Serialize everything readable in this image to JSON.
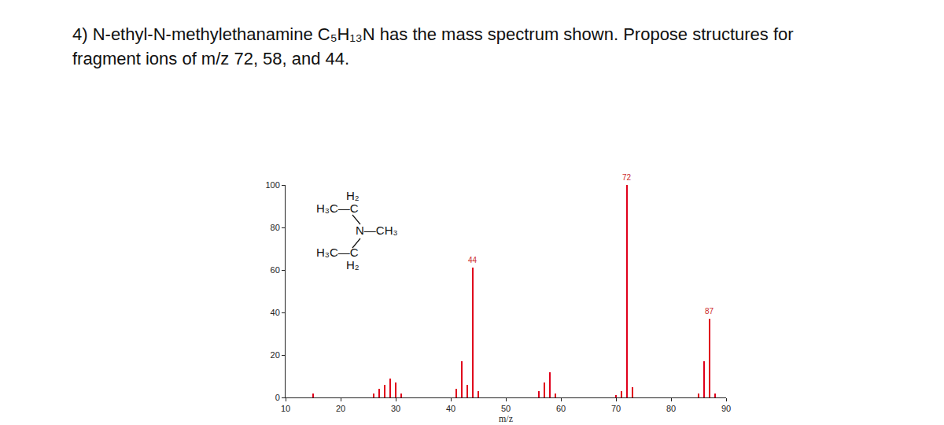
{
  "header": {
    "lines": [
      "4) N-ethyl-N-methylethanamine C₅H₁₃N has the mass spectrum shown. Propose structures for",
      "fragment ions of m/z 72, 58, and 44."
    ]
  },
  "structure": {
    "lines": [
      "H₂",
      "H₃C—C",
      "N—CH₃",
      "H₃C—C",
      "H₂"
    ]
  },
  "chart_data": {
    "type": "bar",
    "x": [
      15,
      26,
      27,
      28,
      29,
      30,
      31,
      41,
      42,
      43,
      44,
      45,
      56,
      57,
      58,
      59,
      70,
      71,
      72,
      73,
      85,
      86,
      87,
      88
    ],
    "values": [
      2,
      2,
      4,
      6,
      9,
      7,
      2,
      4,
      17,
      6,
      61,
      3,
      3,
      7,
      12,
      2,
      1,
      3,
      100,
      5,
      2,
      17,
      37,
      2
    ],
    "color": "#e0001b",
    "xlim": [
      10,
      90
    ],
    "xticks": [
      10,
      20,
      30,
      40,
      50,
      60,
      70,
      80,
      90
    ],
    "ylim": [
      0,
      100
    ],
    "yticks": [
      0,
      20,
      40,
      60,
      80,
      100
    ],
    "x_label": "m/z",
    "annotations": [
      {
        "x": 72,
        "y": 100,
        "text": "72"
      },
      {
        "x": 44,
        "y": 61,
        "text": "44"
      },
      {
        "x": 87,
        "y": 37,
        "text": "87"
      }
    ],
    "grid": false
  }
}
